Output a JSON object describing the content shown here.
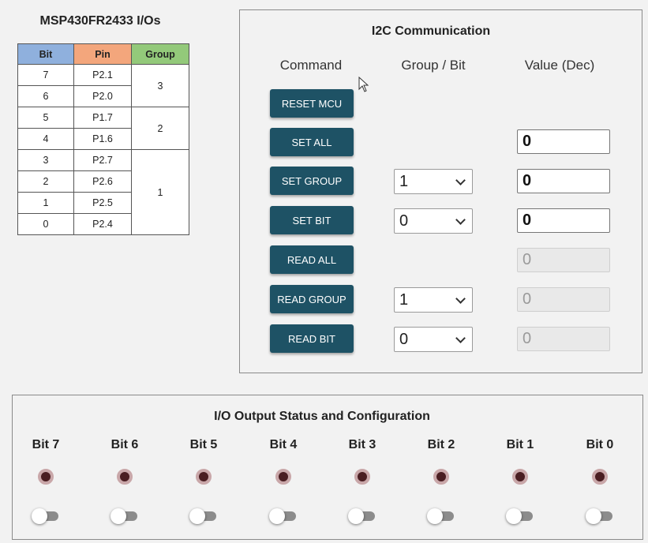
{
  "io_map": {
    "title": "MSP430FR2433 I/Os",
    "headers": {
      "bit": "Bit",
      "pin": "Pin",
      "group": "Group"
    },
    "rows": [
      {
        "bit": "7",
        "pin": "P2.1"
      },
      {
        "bit": "6",
        "pin": "P2.0"
      },
      {
        "bit": "5",
        "pin": "P1.7"
      },
      {
        "bit": "4",
        "pin": "P1.6"
      },
      {
        "bit": "3",
        "pin": "P2.7"
      },
      {
        "bit": "2",
        "pin": "P2.6"
      },
      {
        "bit": "1",
        "pin": "P2.5"
      },
      {
        "bit": "0",
        "pin": "P2.4"
      }
    ],
    "groups": [
      "3",
      "2",
      "1"
    ]
  },
  "i2c": {
    "title": "I2C Communication",
    "col_command": "Command",
    "col_group_bit": "Group / Bit",
    "col_value": "Value (Dec)",
    "commands": {
      "reset_mcu": "RESET MCU",
      "set_all": "SET ALL",
      "set_group": "SET GROUP",
      "set_bit": "SET BIT",
      "read_all": "READ ALL",
      "read_group": "READ GROUP",
      "read_bit": "READ BIT"
    },
    "selects": {
      "set_group": "1",
      "set_bit": "0",
      "read_group": "1",
      "read_bit": "0"
    },
    "values": {
      "set_all": "0",
      "set_group": "0",
      "set_bit": "0",
      "read_all": "0",
      "read_group": "0",
      "read_bit": "0"
    },
    "button_color": "#1e5265"
  },
  "io_status": {
    "title": "I/O Output Status and Configuration",
    "bits": [
      {
        "label": "Bit 7",
        "led": "off",
        "toggle": "off"
      },
      {
        "label": "Bit 6",
        "led": "off",
        "toggle": "off"
      },
      {
        "label": "Bit 5",
        "led": "off",
        "toggle": "off"
      },
      {
        "label": "Bit 4",
        "led": "off",
        "toggle": "off"
      },
      {
        "label": "Bit 3",
        "led": "off",
        "toggle": "off"
      },
      {
        "label": "Bit 2",
        "led": "off",
        "toggle": "off"
      },
      {
        "label": "Bit 1",
        "led": "off",
        "toggle": "off"
      },
      {
        "label": "Bit 0",
        "led": "off",
        "toggle": "off"
      }
    ],
    "led_color": "#4a1e22"
  }
}
